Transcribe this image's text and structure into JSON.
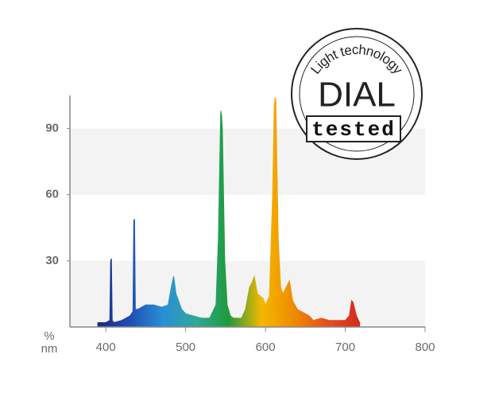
{
  "chart_data": {
    "type": "area",
    "x_label": "nm",
    "y_label": "%",
    "x": [
      390,
      400,
      405,
      406,
      407,
      408,
      410,
      420,
      430,
      434,
      435,
      436,
      437,
      440,
      450,
      460,
      470,
      478,
      482,
      485,
      488,
      495,
      500,
      510,
      520,
      530,
      538,
      541,
      543,
      544,
      545,
      546,
      547,
      549,
      552,
      556,
      560,
      570,
      575,
      580,
      583,
      586,
      590,
      597,
      600,
      605,
      609,
      611,
      612,
      613,
      614,
      616,
      619,
      622,
      626,
      630,
      634,
      640,
      650,
      655,
      660,
      670,
      680,
      690,
      700,
      705,
      708,
      710,
      714,
      718
    ],
    "values": [
      2,
      2,
      3,
      30,
      31,
      3,
      2,
      3,
      5,
      7,
      48,
      49,
      8,
      8,
      10,
      10,
      9,
      10,
      18,
      23,
      15,
      8,
      6,
      5,
      4,
      4,
      10,
      40,
      80,
      98,
      96,
      90,
      70,
      30,
      10,
      5,
      4,
      4,
      8,
      18,
      20,
      23,
      15,
      13,
      10,
      14,
      60,
      100,
      104,
      103,
      80,
      40,
      18,
      15,
      18,
      21,
      12,
      8,
      6,
      5,
      3,
      4,
      3,
      3,
      3,
      5,
      12,
      11,
      5,
      2
    ],
    "colors": [
      "#1b2a80",
      "#1f4fb5",
      "#2a8fd6",
      "#2fa89a",
      "#1f9a3a",
      "#f5b800",
      "#ef8a00",
      "#e5501e",
      "#d42a1f"
    ],
    "xlim": [
      355,
      800
    ],
    "ylim": [
      0,
      105
    ],
    "xticks": [
      400,
      500,
      600,
      700,
      800
    ],
    "yticks": [
      30,
      60,
      90
    ],
    "bands": true
  },
  "badge": {
    "arc": "Light technology",
    "main": "DIAL",
    "sub": "tested"
  }
}
